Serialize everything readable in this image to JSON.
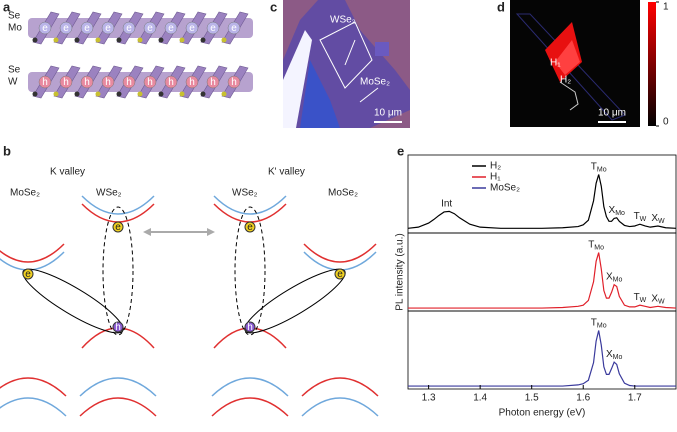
{
  "panel_labels": [
    "a",
    "b",
    "c",
    "d",
    "e"
  ],
  "panel_a": {
    "top_layer_atoms": [
      "Se",
      "Mo"
    ],
    "bottom_layer_atoms": [
      "Se",
      "W"
    ],
    "electron": "e",
    "hole": "h"
  },
  "panel_b": {
    "left_valley": "K valley",
    "right_valley": "K' valley",
    "left_materials": [
      "MoSe₂",
      "WSe₂"
    ],
    "right_materials": [
      "WSe₂",
      "MoSe₂"
    ],
    "electron": "e",
    "hole": "h"
  },
  "panel_c": {
    "labels": [
      "WSe₂",
      "MoSe₂"
    ],
    "scale_bar": "10 μm"
  },
  "panel_d": {
    "labels": [
      "H₁",
      "H₂"
    ],
    "scale_bar": "10 μm",
    "colorbar_ticks": [
      0,
      1
    ]
  },
  "chart_data": {
    "type": "line",
    "xlabel": "Photon energy (eV)",
    "ylabel": "PL intensity (a.u.)",
    "stacked_panels": true,
    "legend": "upper-left",
    "xlim": [
      1.26,
      1.78
    ],
    "xticks": [
      1.3,
      1.4,
      1.5,
      1.6,
      1.7
    ],
    "ylim": [
      0,
      1.3
    ],
    "x": [
      1.26,
      1.28,
      1.3,
      1.31,
      1.32,
      1.33,
      1.34,
      1.35,
      1.36,
      1.38,
      1.4,
      1.44,
      1.48,
      1.52,
      1.56,
      1.59,
      1.6,
      1.61,
      1.62,
      1.625,
      1.63,
      1.635,
      1.64,
      1.645,
      1.65,
      1.655,
      1.66,
      1.665,
      1.67,
      1.68,
      1.69,
      1.7,
      1.71,
      1.72,
      1.73,
      1.745,
      1.76,
      1.78
    ],
    "series": [
      {
        "name": "H₂",
        "color": "#000000",
        "values": [
          0.08,
          0.1,
          0.17,
          0.23,
          0.3,
          0.36,
          0.37,
          0.33,
          0.26,
          0.15,
          0.1,
          0.08,
          0.08,
          0.08,
          0.09,
          0.11,
          0.14,
          0.22,
          0.55,
          0.85,
          1.0,
          0.8,
          0.45,
          0.28,
          0.2,
          0.2,
          0.25,
          0.26,
          0.2,
          0.13,
          0.11,
          0.12,
          0.15,
          0.12,
          0.1,
          0.12,
          0.09,
          0.08
        ],
        "annotations": [
          {
            "text": "Int",
            "x": 1.335
          },
          {
            "text": "T",
            "sub": "Mo",
            "x": 1.63
          },
          {
            "text": "X",
            "sub": "Mo",
            "x": 1.665
          },
          {
            "text": "T",
            "sub": "W",
            "x": 1.71
          },
          {
            "text": "X",
            "sub": "W",
            "x": 1.745
          }
        ]
      },
      {
        "name": "H₁",
        "color": "#e0202a",
        "values": [
          0.05,
          0.05,
          0.05,
          0.05,
          0.05,
          0.05,
          0.05,
          0.05,
          0.05,
          0.05,
          0.05,
          0.05,
          0.05,
          0.05,
          0.06,
          0.08,
          0.1,
          0.18,
          0.5,
          0.85,
          1.0,
          0.72,
          0.35,
          0.22,
          0.22,
          0.32,
          0.45,
          0.42,
          0.25,
          0.1,
          0.07,
          0.07,
          0.1,
          0.08,
          0.06,
          0.08,
          0.06,
          0.05
        ],
        "annotations": [
          {
            "text": "T",
            "sub": "Mo",
            "x": 1.625
          },
          {
            "text": "X",
            "sub": "Mo",
            "x": 1.66
          },
          {
            "text": "T",
            "sub": "W",
            "x": 1.71
          },
          {
            "text": "X",
            "sub": "W",
            "x": 1.745
          }
        ]
      },
      {
        "name": "MoSe₂",
        "color": "#3a3a9c",
        "values": [
          0.05,
          0.05,
          0.05,
          0.05,
          0.05,
          0.05,
          0.05,
          0.05,
          0.05,
          0.05,
          0.05,
          0.05,
          0.05,
          0.05,
          0.05,
          0.07,
          0.09,
          0.15,
          0.45,
          0.82,
          1.0,
          0.75,
          0.38,
          0.25,
          0.25,
          0.35,
          0.46,
          0.42,
          0.26,
          0.1,
          0.06,
          0.05,
          0.05,
          0.05,
          0.05,
          0.05,
          0.05,
          0.05
        ],
        "annotations": [
          {
            "text": "T",
            "sub": "Mo",
            "x": 1.63
          },
          {
            "text": "X",
            "sub": "Mo",
            "x": 1.66
          }
        ]
      }
    ]
  }
}
